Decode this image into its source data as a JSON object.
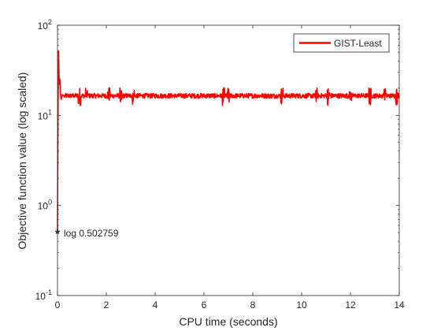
{
  "chart_data": {
    "type": "line",
    "title": "",
    "xlabel": "CPU time (seconds)",
    "ylabel": "Objective function value (log scaled)",
    "xlim": [
      0,
      14
    ],
    "ylim": [
      0.1,
      100
    ],
    "yscale": "log",
    "grid": false,
    "legend_position": "top-right",
    "x_ticks": [
      "0",
      "2",
      "4",
      "6",
      "8",
      "10",
      "12",
      "14"
    ],
    "y_ticks": [
      {
        "base": "10",
        "exp": "-1",
        "value": 0.1
      },
      {
        "base": "10",
        "exp": "0",
        "value": 1
      },
      {
        "base": "10",
        "exp": "1",
        "value": 10
      },
      {
        "base": "10",
        "exp": "2",
        "value": 100
      }
    ],
    "series": [
      {
        "name": "GIST-Least",
        "color": "#ff0000",
        "baseline": 16.5,
        "x": [
          0,
          0.02,
          0.04,
          0.06,
          0.08,
          0.1,
          0.12,
          0.15,
          0.2,
          0.3,
          0.5,
          0.8,
          1.2,
          1.6,
          2.1,
          2.6,
          3.0,
          3.5,
          4.2,
          5.0,
          5.8,
          6.6,
          6.9,
          7.5,
          8.3,
          9.0,
          9.8,
          10.6,
          11.2,
          11.8,
          12.5,
          13.3,
          14.0
        ],
        "y": [
          0.502759,
          8,
          52,
          30,
          22,
          25,
          18,
          15,
          17,
          16,
          16.5,
          16,
          16.5,
          16,
          17.5,
          16,
          16.5,
          16,
          16.5,
          16,
          16.5,
          16,
          16.5,
          16,
          16.5,
          16,
          16.5,
          16,
          16.5,
          16,
          16.5,
          16,
          16.5
        ]
      }
    ],
    "annotations": [
      {
        "text": "log 0.502759",
        "marker": "*",
        "x": 0,
        "y": 0.502759
      }
    ]
  }
}
